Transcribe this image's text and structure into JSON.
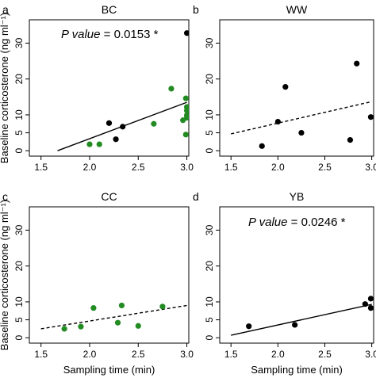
{
  "chart_data": {
    "ylabel": "Baseline corticosterone (ng ml⁻¹)",
    "xlabel": "Sampling time (min)",
    "panels": [
      {
        "letter": "a",
        "title": "BC",
        "type": "scatter",
        "xlim": [
          1.5,
          3.0
        ],
        "ylim": [
          0,
          35
        ],
        "x_ticks": [
          "1.5",
          "2.0",
          "2.5",
          "3.0"
        ],
        "y_ticks": [
          "0",
          "5",
          "10",
          "20",
          "30"
        ],
        "annotation_pre": "P value",
        "annotation_post": " = 0.0153 *",
        "fit_line": {
          "style": "solid",
          "x": [
            1.67,
            3.0
          ],
          "y": [
            0.0,
            13.5
          ]
        },
        "series": [
          {
            "color": "#000000",
            "points": [
              [
                2.2,
                7.7
              ],
              [
                2.27,
                3.2
              ],
              [
                2.34,
                6.7
              ],
              [
                3.0,
                32.8
              ]
            ]
          },
          {
            "color": "#228b22",
            "points": [
              [
                2.0,
                1.8
              ],
              [
                2.1,
                1.8
              ],
              [
                2.66,
                7.5
              ],
              [
                2.84,
                17.3
              ],
              [
                2.96,
                8.5
              ],
              [
                2.99,
                4.5
              ],
              [
                2.99,
                14.6
              ],
              [
                3.0,
                12.2
              ],
              [
                3.0,
                11.2
              ],
              [
                3.0,
                9.2
              ],
              [
                3.0,
                9.9
              ]
            ]
          }
        ]
      },
      {
        "letter": "b",
        "title": "WW",
        "type": "scatter",
        "xlim": [
          1.5,
          3.0
        ],
        "ylim": [
          0,
          35
        ],
        "x_ticks": [
          "1.5",
          "2.0",
          "2.5",
          "3.0"
        ],
        "y_ticks": [
          "0",
          "5",
          "10",
          "20",
          "30"
        ],
        "annotation_pre": "",
        "annotation_post": "",
        "fit_line": {
          "style": "dashed",
          "x": [
            1.5,
            3.0
          ],
          "y": [
            4.7,
            13.7
          ]
        },
        "series": [
          {
            "color": "#000000",
            "points": [
              [
                1.83,
                1.3
              ],
              [
                2.0,
                8.1
              ],
              [
                2.08,
                17.8
              ],
              [
                2.25,
                5.0
              ],
              [
                2.77,
                3.0
              ],
              [
                2.84,
                24.3
              ],
              [
                2.99,
                9.4
              ]
            ]
          }
        ]
      },
      {
        "letter": "c",
        "title": "CC",
        "type": "scatter",
        "xlim": [
          1.5,
          3.0
        ],
        "ylim": [
          0,
          35
        ],
        "x_ticks": [
          "1.5",
          "2.0",
          "2.5",
          "3.0"
        ],
        "y_ticks": [
          "0",
          "5",
          "10",
          "20",
          "30"
        ],
        "annotation_pre": "",
        "annotation_post": "",
        "fit_line": {
          "style": "dashed",
          "x": [
            1.5,
            3.0
          ],
          "y": [
            2.5,
            9.0
          ]
        },
        "series": [
          {
            "color": "#228b22",
            "points": [
              [
                1.74,
                2.5
              ],
              [
                1.91,
                3.1
              ],
              [
                2.04,
                8.3
              ],
              [
                2.29,
                4.2
              ],
              [
                2.33,
                9.0
              ],
              [
                2.5,
                3.3
              ],
              [
                2.75,
                8.7
              ]
            ]
          }
        ]
      },
      {
        "letter": "d",
        "title": "YB",
        "type": "scatter",
        "xlim": [
          1.5,
          3.0
        ],
        "ylim": [
          0,
          35
        ],
        "x_ticks": [
          "1.5",
          "2.0",
          "2.5",
          "3.0"
        ],
        "y_ticks": [
          "0",
          "5",
          "10",
          "20",
          "30"
        ],
        "annotation_pre": "P value",
        "annotation_post": " = 0.0246 *",
        "fit_line": {
          "style": "solid",
          "x": [
            1.5,
            3.0
          ],
          "y": [
            0.7,
            9.3
          ]
        },
        "series": [
          {
            "color": "#000000",
            "points": [
              [
                1.69,
                3.2
              ],
              [
                2.18,
                3.6
              ],
              [
                2.93,
                9.4
              ],
              [
                2.99,
                10.9
              ],
              [
                2.99,
                8.3
              ]
            ]
          }
        ]
      }
    ]
  }
}
